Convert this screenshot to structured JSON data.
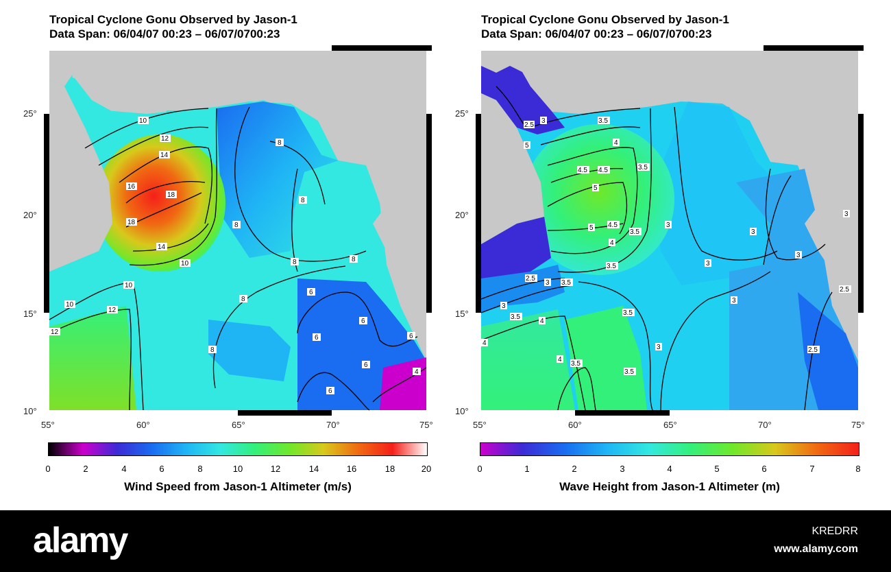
{
  "panels": [
    {
      "title_line1": "Tropical Cyclone Gonu Observed by Jason-1",
      "title_line2": "Data Span: 06/04/07 00:23 – 06/07/0700:23",
      "x_ticks": [
        "55°",
        "60°",
        "65°",
        "70°",
        "75°"
      ],
      "y_ticks": [
        "25°",
        "20°",
        "15°",
        "10°"
      ],
      "colorbar_ticks": [
        "0",
        "2",
        "4",
        "6",
        "8",
        "10",
        "12",
        "14",
        "16",
        "18",
        "20"
      ],
      "colorbar_title": "Wind Speed from Jason-1 Altimeter (m/s)",
      "colorbar_colors": [
        "#000000",
        "#cc00cc",
        "#3b2bd6",
        "#1a6cf0",
        "#1fb5f5",
        "#33e8e0",
        "#33f07a",
        "#6fe82a",
        "#d8c81c",
        "#f06a12",
        "#f5201a",
        "#ffffff"
      ],
      "contour_labels": [
        "10",
        "12",
        "14",
        "16",
        "18",
        "8",
        "6",
        "4"
      ]
    },
    {
      "title_line1": "Tropical Cyclone Gonu Observed by Jason-1",
      "title_line2": "Data Span: 06/04/07 00:23 – 06/07/0700:23",
      "x_ticks": [
        "55°",
        "60°",
        "65°",
        "70°",
        "75°"
      ],
      "y_ticks": [
        "25°",
        "20°",
        "15°",
        "10°"
      ],
      "colorbar_ticks": [
        "0",
        "1",
        "2",
        "3",
        "4",
        "5",
        "6",
        "7",
        "8"
      ],
      "colorbar_title": "Wave Height from Jason-1 Altimeter (m)",
      "colorbar_colors": [
        "#cc00cc",
        "#3b2bd6",
        "#1a6cf0",
        "#1fb5f5",
        "#33e8e0",
        "#33f07a",
        "#6fe82a",
        "#d8c81c",
        "#f06a12",
        "#f5201a"
      ],
      "contour_labels": [
        "2.5",
        "3",
        "3.5",
        "4",
        "4.5",
        "5"
      ]
    }
  ],
  "footer": {
    "brand": "alamy",
    "stock_id": "KREDRR",
    "url": "www.alamy.com"
  }
}
